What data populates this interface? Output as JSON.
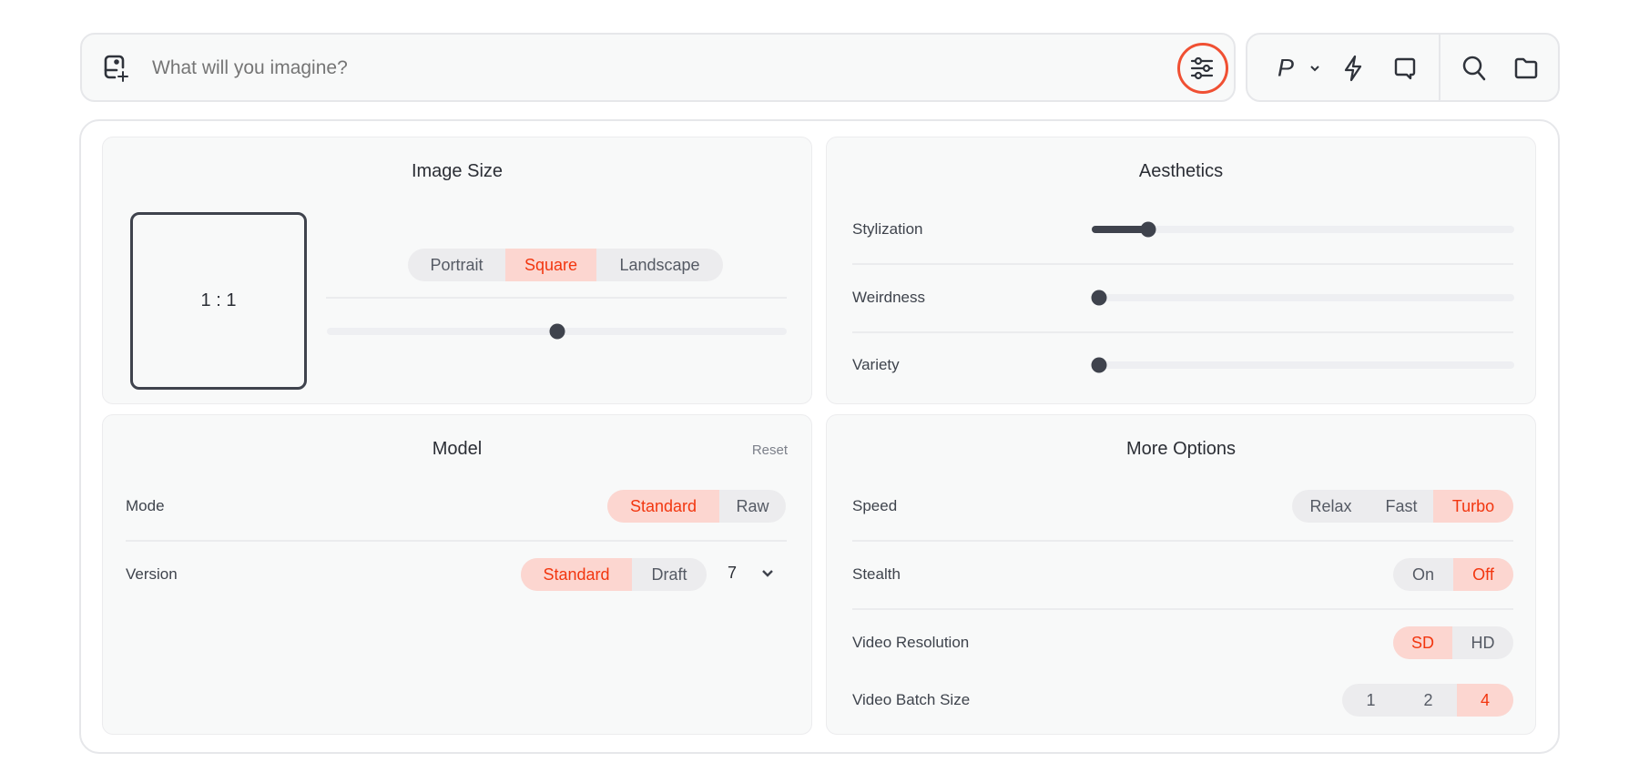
{
  "prompt": {
    "placeholder": "What will you imagine?",
    "settings_highlight_color": "#f05033"
  },
  "toolbar": {
    "personalize_label": "P",
    "icons": [
      "image-add-icon",
      "sliders-icon",
      "chevron-down-icon",
      "bolt-icon",
      "chat-icon",
      "search-icon",
      "folder-icon"
    ]
  },
  "image_size": {
    "title": "Image Size",
    "ratio": "1 : 1",
    "options": [
      "Portrait",
      "Square",
      "Landscape"
    ],
    "selected": "Square",
    "slider_position": 0.5
  },
  "aesthetics": {
    "title": "Aesthetics",
    "sliders": [
      {
        "label": "Stylization",
        "value": 0.12
      },
      {
        "label": "Weirdness",
        "value": 0
      },
      {
        "label": "Variety",
        "value": 0
      }
    ]
  },
  "model": {
    "title": "Model",
    "reset_label": "Reset",
    "mode": {
      "label": "Mode",
      "options": [
        "Standard",
        "Raw"
      ],
      "selected": "Standard"
    },
    "version": {
      "label": "Version",
      "options": [
        "Standard",
        "Draft"
      ],
      "selected": "Standard",
      "number": "7"
    }
  },
  "more_options": {
    "title": "More Options",
    "speed": {
      "label": "Speed",
      "options": [
        "Relax",
        "Fast",
        "Turbo"
      ],
      "selected": "Turbo"
    },
    "stealth": {
      "label": "Stealth",
      "options": [
        "On",
        "Off"
      ],
      "selected": "Off"
    },
    "video_resolution": {
      "label": "Video Resolution",
      "options": [
        "SD",
        "HD"
      ],
      "selected": "SD"
    },
    "video_batch_size": {
      "label": "Video Batch Size",
      "options": [
        "1",
        "2",
        "4"
      ],
      "selected": "4"
    }
  },
  "colors": {
    "accent_text": "#f2360f",
    "accent_bg": "#fcd6d0",
    "inactive_bg": "#ececee"
  }
}
